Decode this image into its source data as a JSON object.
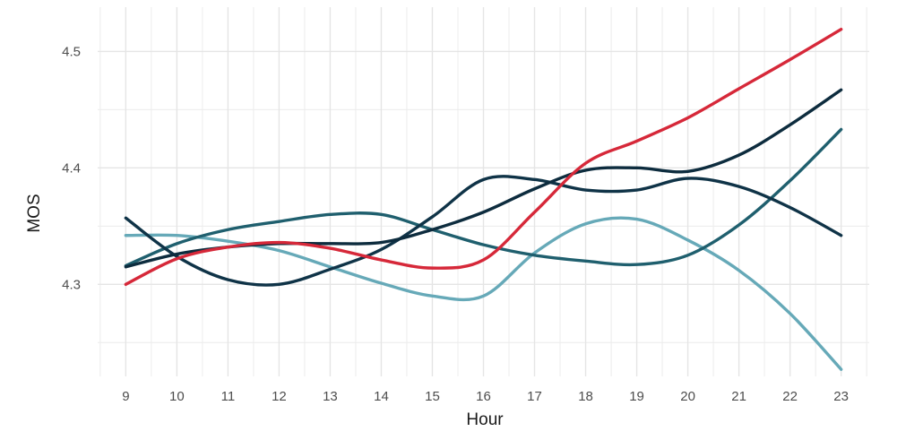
{
  "chart_data": {
    "type": "line",
    "xlabel": "Hour",
    "ylabel": "MOS",
    "xlim": [
      8.45,
      23.55
    ],
    "ylim": [
      4.221,
      4.538
    ],
    "x_ticks": [
      9,
      10,
      11,
      12,
      13,
      14,
      15,
      16,
      17,
      18,
      19,
      20,
      21,
      22,
      23
    ],
    "y_ticks": [
      4.3,
      4.4,
      4.5
    ],
    "y_tick_labels": [
      "4.3",
      "4.4",
      "4.5"
    ],
    "grid": true,
    "legend": "none",
    "x": [
      9,
      10,
      11,
      12,
      13,
      14,
      15,
      16,
      17,
      18,
      19,
      20,
      21,
      22,
      23
    ],
    "series": [
      {
        "color": "#d62839",
        "values": [
          4.3,
          4.322,
          4.332,
          4.336,
          4.331,
          4.321,
          4.314,
          4.321,
          4.362,
          4.404,
          4.423,
          4.443,
          4.468,
          4.493,
          4.519
        ]
      },
      {
        "color": "#0d2c3e",
        "values": [
          4.315,
          4.326,
          4.332,
          4.335,
          4.335,
          4.336,
          4.347,
          4.362,
          4.382,
          4.398,
          4.4,
          4.397,
          4.411,
          4.437,
          4.467
        ]
      },
      {
        "color": "#0f3347",
        "values": [
          4.357,
          4.324,
          4.304,
          4.3,
          4.313,
          4.33,
          4.358,
          4.39,
          4.39,
          4.381,
          4.381,
          4.391,
          4.384,
          4.366,
          4.342
        ]
      },
      {
        "color": "#1f5f6e",
        "values": [
          4.316,
          4.335,
          4.347,
          4.354,
          4.36,
          4.36,
          4.347,
          4.334,
          4.325,
          4.32,
          4.317,
          4.325,
          4.351,
          4.389,
          4.433
        ]
      },
      {
        "color": "#66a9b8",
        "values": [
          4.342,
          4.342,
          4.337,
          4.329,
          4.315,
          4.301,
          4.29,
          4.29,
          4.327,
          4.352,
          4.356,
          4.338,
          4.312,
          4.275,
          4.227
        ]
      }
    ]
  }
}
